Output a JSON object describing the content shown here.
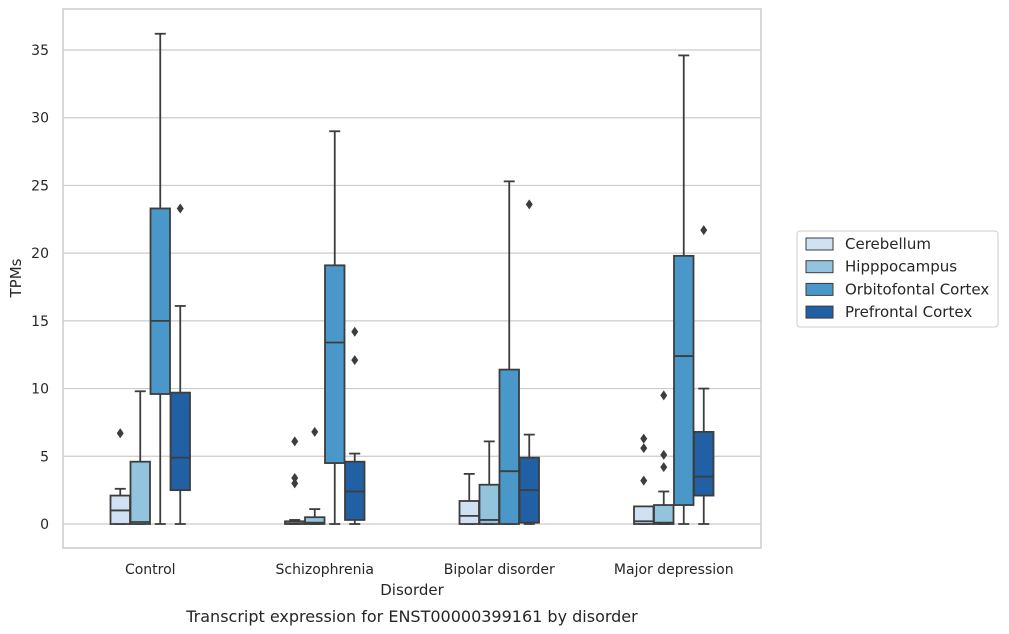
{
  "caption": "Transcript expression for ENST00000399161 by disorder",
  "chart_data": {
    "type": "box",
    "xlabel": "Disorder",
    "ylabel": "TPMs",
    "ylim": [
      -1.7,
      38
    ],
    "yticks": [
      0,
      5,
      10,
      15,
      20,
      25,
      30,
      35
    ],
    "grid": "horizontal",
    "legend_position": "right",
    "categories": [
      "Control",
      "Schizophrenia",
      "Bipolar disorder",
      "Major depression"
    ],
    "series": [
      {
        "name": "Cerebellum",
        "color": "#cfe1f2",
        "boxes": [
          {
            "whislo": 0,
            "q1": 0,
            "med": 1.0,
            "q3": 2.1,
            "whishi": 2.6,
            "fliers": [
              6.7
            ]
          },
          {
            "whislo": 0,
            "q1": 0,
            "med": 0.05,
            "q3": 0.2,
            "whishi": 0.3,
            "fliers": [
              6.1,
              3.4,
              3.0
            ]
          },
          {
            "whislo": 0,
            "q1": 0,
            "med": 0.6,
            "q3": 1.7,
            "whishi": 3.7,
            "fliers": []
          },
          {
            "whislo": 0,
            "q1": 0,
            "med": 0.2,
            "q3": 1.3,
            "whishi": 1.3,
            "fliers": [
              6.3,
              5.6,
              3.2
            ]
          }
        ]
      },
      {
        "name": "Hipppocampus",
        "color": "#93c4de",
        "boxes": [
          {
            "whislo": 0,
            "q1": 0,
            "med": 0.15,
            "q3": 4.6,
            "whishi": 9.8,
            "fliers": []
          },
          {
            "whislo": 0,
            "q1": 0,
            "med": 0.1,
            "q3": 0.5,
            "whishi": 1.1,
            "fliers": [
              6.8
            ]
          },
          {
            "whislo": 0,
            "q1": 0,
            "med": 0.3,
            "q3": 2.9,
            "whishi": 6.1,
            "fliers": []
          },
          {
            "whislo": 0,
            "q1": 0,
            "med": 0.1,
            "q3": 1.4,
            "whishi": 2.4,
            "fliers": [
              9.5,
              5.1,
              4.2
            ]
          }
        ]
      },
      {
        "name": "Orbitofontal Cortex",
        "color": "#4a98c9",
        "boxes": [
          {
            "whislo": 0,
            "q1": 9.6,
            "med": 15.0,
            "q3": 23.3,
            "whishi": 36.2,
            "fliers": []
          },
          {
            "whislo": 0,
            "q1": 4.5,
            "med": 13.4,
            "q3": 19.1,
            "whishi": 29.0,
            "fliers": []
          },
          {
            "whislo": 0,
            "q1": 0,
            "med": 3.9,
            "q3": 11.4,
            "whishi": 25.3,
            "fliers": []
          },
          {
            "whislo": 0,
            "q1": 1.4,
            "med": 12.4,
            "q3": 19.8,
            "whishi": 34.6,
            "fliers": []
          }
        ]
      },
      {
        "name": "Prefrontal Cortex",
        "color": "#2260a6",
        "boxes": [
          {
            "whislo": 0,
            "q1": 2.5,
            "med": 4.9,
            "q3": 9.7,
            "whishi": 16.1,
            "fliers": [
              23.3
            ]
          },
          {
            "whislo": 0,
            "q1": 0.3,
            "med": 2.4,
            "q3": 4.6,
            "whishi": 5.2,
            "fliers": [
              14.2,
              12.1
            ]
          },
          {
            "whislo": 0,
            "q1": 0.1,
            "med": 2.5,
            "q3": 4.9,
            "whishi": 6.6,
            "fliers": [
              23.6
            ]
          },
          {
            "whislo": 0,
            "q1": 2.1,
            "med": 3.5,
            "q3": 6.8,
            "whishi": 10.0,
            "fliers": [
              21.7
            ]
          }
        ]
      }
    ]
  }
}
